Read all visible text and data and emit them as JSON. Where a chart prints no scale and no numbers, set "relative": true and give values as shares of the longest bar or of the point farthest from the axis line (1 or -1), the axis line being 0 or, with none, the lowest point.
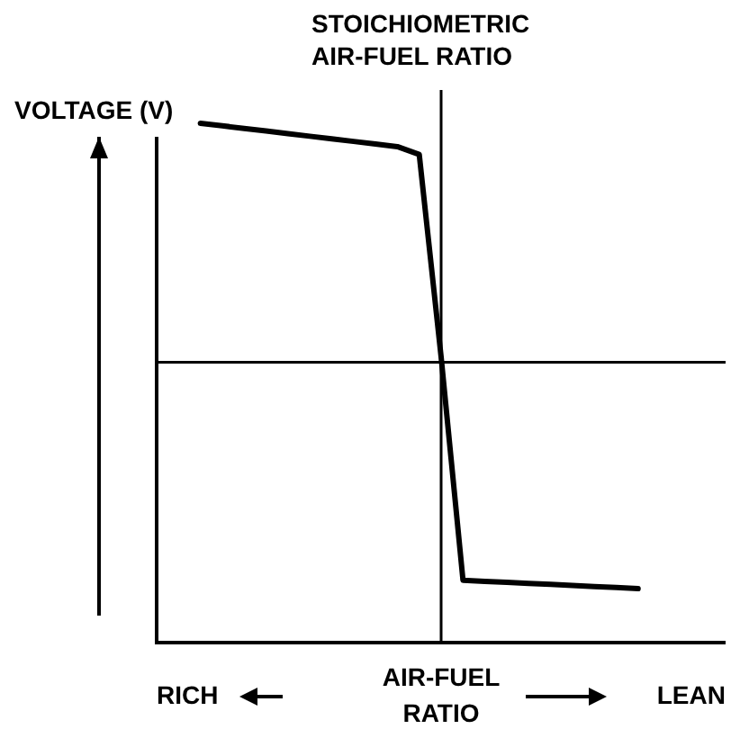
{
  "chart_data": {
    "type": "line",
    "relative": true,
    "ylabel": "VOLTAGE (V)",
    "xlabel": "AIR-FUEL RATIO",
    "annotations": [
      "STOICHIOMETRIC AIR-FUEL RATIO",
      "RICH",
      "LEAN"
    ],
    "categories": [
      null,
      null,
      null,
      null,
      null,
      null,
      null,
      null,
      null,
      null,
      null,
      null,
      null,
      null,
      null,
      null,
      null,
      null,
      null,
      null,
      null,
      null,
      null,
      null,
      null,
      null,
      null
    ],
    "series": [
      {
        "color": "#000000",
        "values": [
          null,
          null,
          1.0,
          0.995,
          0.99,
          0.985,
          0.98,
          0.975,
          0.97,
          0.965,
          0.96,
          0.955,
          0.94,
          0.55,
          0.12,
          0.118,
          0.116,
          0.114,
          0.112,
          0.11,
          0.108,
          0.106,
          0.104,
          null,
          null,
          null,
          null
        ]
      }
    ],
    "ref_lines": [
      {
        "axis": "y",
        "value": 0.54
      }
    ],
    "legend": false,
    "marker": "none",
    "line_style": "solid"
  }
}
